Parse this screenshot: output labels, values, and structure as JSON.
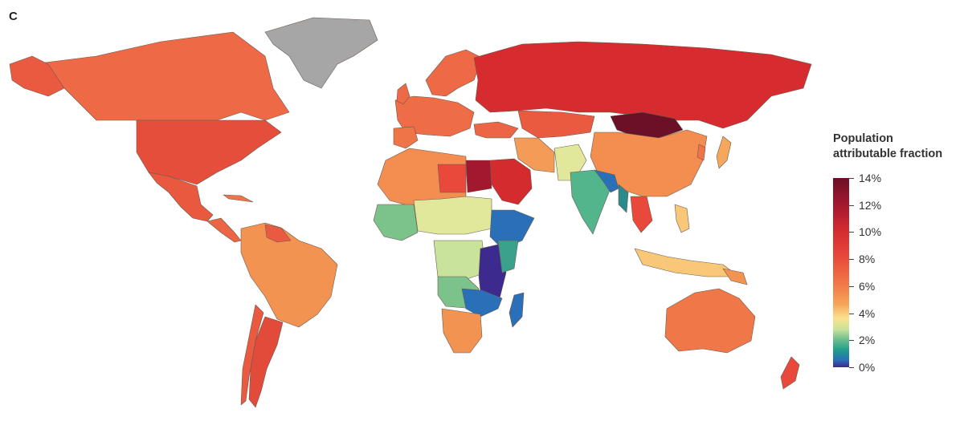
{
  "figure": {
    "panel_letter": "C"
  },
  "legend": {
    "title_line1": "Population",
    "title_line2": "attributable fraction",
    "ticks": [
      "14%",
      "12%",
      "10%",
      "8%",
      "6%",
      "4%",
      "2%",
      "0%"
    ],
    "colors": [
      "#6b1027",
      "#a3182e",
      "#d42b2f",
      "#e8493a",
      "#f07848",
      "#f6a75b",
      "#fbe08c",
      "#c9e39a",
      "#63b98d",
      "#1f9d8a",
      "#2a70b8",
      "#3d2a8e"
    ]
  },
  "map_colors": {
    "no_data": "#a6a6a6",
    "ocean": "#ffffff"
  }
}
